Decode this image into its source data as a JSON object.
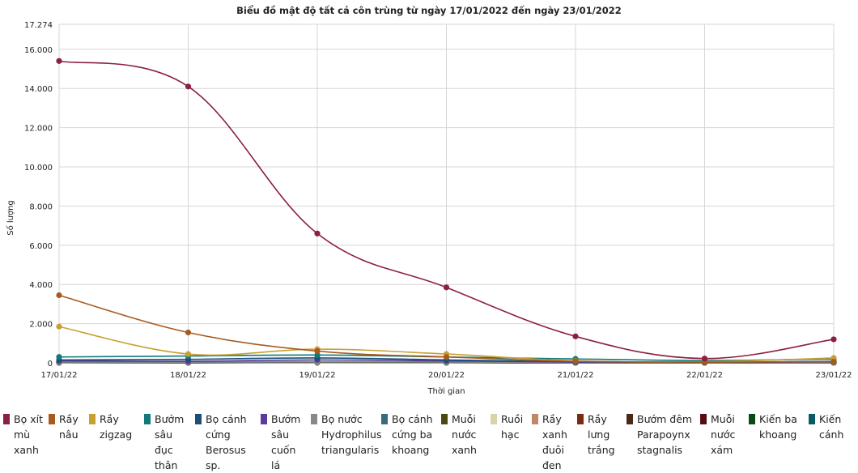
{
  "chart_data": {
    "type": "line",
    "title": "Biểu đồ mật độ tất cả côn trùng từ ngày 17/01/2022 đến ngày 23/01/2022",
    "xlabel": "Thời gian",
    "ylabel": "Số lượng",
    "categories": [
      "17/01/22",
      "18/01/22",
      "19/01/22",
      "20/01/22",
      "21/01/22",
      "22/01/22",
      "23/01/22"
    ],
    "ylim": [
      0,
      17274
    ],
    "yticks": [
      0,
      2000,
      4000,
      6000,
      8000,
      10000,
      12000,
      14000,
      16000,
      17274
    ],
    "yticklabels": [
      "0",
      "2.000",
      "4.000",
      "6.000",
      "8.000",
      "10.000",
      "12.000",
      "14.000",
      "16.000",
      "17.274"
    ],
    "grid": true,
    "legend_position": "bottom",
    "series": [
      {
        "name": "Bọ xít mù xanh",
        "color": "#8b2040",
        "values": [
          15400,
          14100,
          6600,
          3850,
          1350,
          220,
          1200
        ]
      },
      {
        "name": "Rầy nâu",
        "color": "#a85a1e",
        "values": [
          3450,
          1550,
          600,
          300,
          80,
          40,
          60
        ]
      },
      {
        "name": "Rầy zigzag",
        "color": "#c8a032",
        "values": [
          1850,
          450,
          700,
          450,
          100,
          60,
          250
        ]
      },
      {
        "name": "Bướm sâu đục thân",
        "color": "#127a7a",
        "values": [
          300,
          350,
          400,
          300,
          200,
          120,
          200
        ]
      },
      {
        "name": "Bọ cánh cứng Berosus sp.",
        "color": "#1a4f7a",
        "values": [
          150,
          180,
          250,
          150,
          60,
          30,
          80
        ]
      },
      {
        "name": "Bướm sâu cuốn lá",
        "color": "#5a3a9a",
        "values": [
          100,
          80,
          150,
          100,
          40,
          20,
          50
        ]
      },
      {
        "name": "Bọ nước Hydrophilus triangularis",
        "color": "#888888",
        "values": [
          50,
          40,
          60,
          50,
          20,
          10,
          30
        ]
      },
      {
        "name": "Bọ cánh cứng ba khoang",
        "color": "#3a6b7a",
        "values": [
          40,
          30,
          50,
          40,
          20,
          10,
          20
        ]
      },
      {
        "name": "Muỗi nước xanh",
        "color": "#4a4a10",
        "values": [
          30,
          20,
          40,
          30,
          10,
          5,
          15
        ]
      },
      {
        "name": "Ruồi hạc",
        "color": "#d8d3a8",
        "values": [
          20,
          15,
          25,
          20,
          8,
          4,
          10
        ]
      },
      {
        "name": "Rầy xanh đuôi đen",
        "color": "#c08868",
        "values": [
          20,
          15,
          25,
          20,
          8,
          4,
          10
        ]
      },
      {
        "name": "Rầy lưng trắng",
        "color": "#7a2a10",
        "values": [
          15,
          10,
          20,
          15,
          5,
          3,
          8
        ]
      },
      {
        "name": "Bướm đêm Parapoynx stagnalis",
        "color": "#4a2a14",
        "values": [
          10,
          8,
          15,
          10,
          4,
          2,
          6
        ]
      },
      {
        "name": "Muỗi nước xám",
        "color": "#5a0a14",
        "values": [
          10,
          8,
          12,
          10,
          4,
          2,
          6
        ]
      },
      {
        "name": "Kiến ba khoang",
        "color": "#0a4a14",
        "values": [
          8,
          6,
          10,
          8,
          3,
          2,
          5
        ]
      },
      {
        "name": "Kiến cánh",
        "color": "#0a5a6a",
        "values": [
          5,
          4,
          8,
          5,
          2,
          1,
          3
        ]
      }
    ]
  }
}
